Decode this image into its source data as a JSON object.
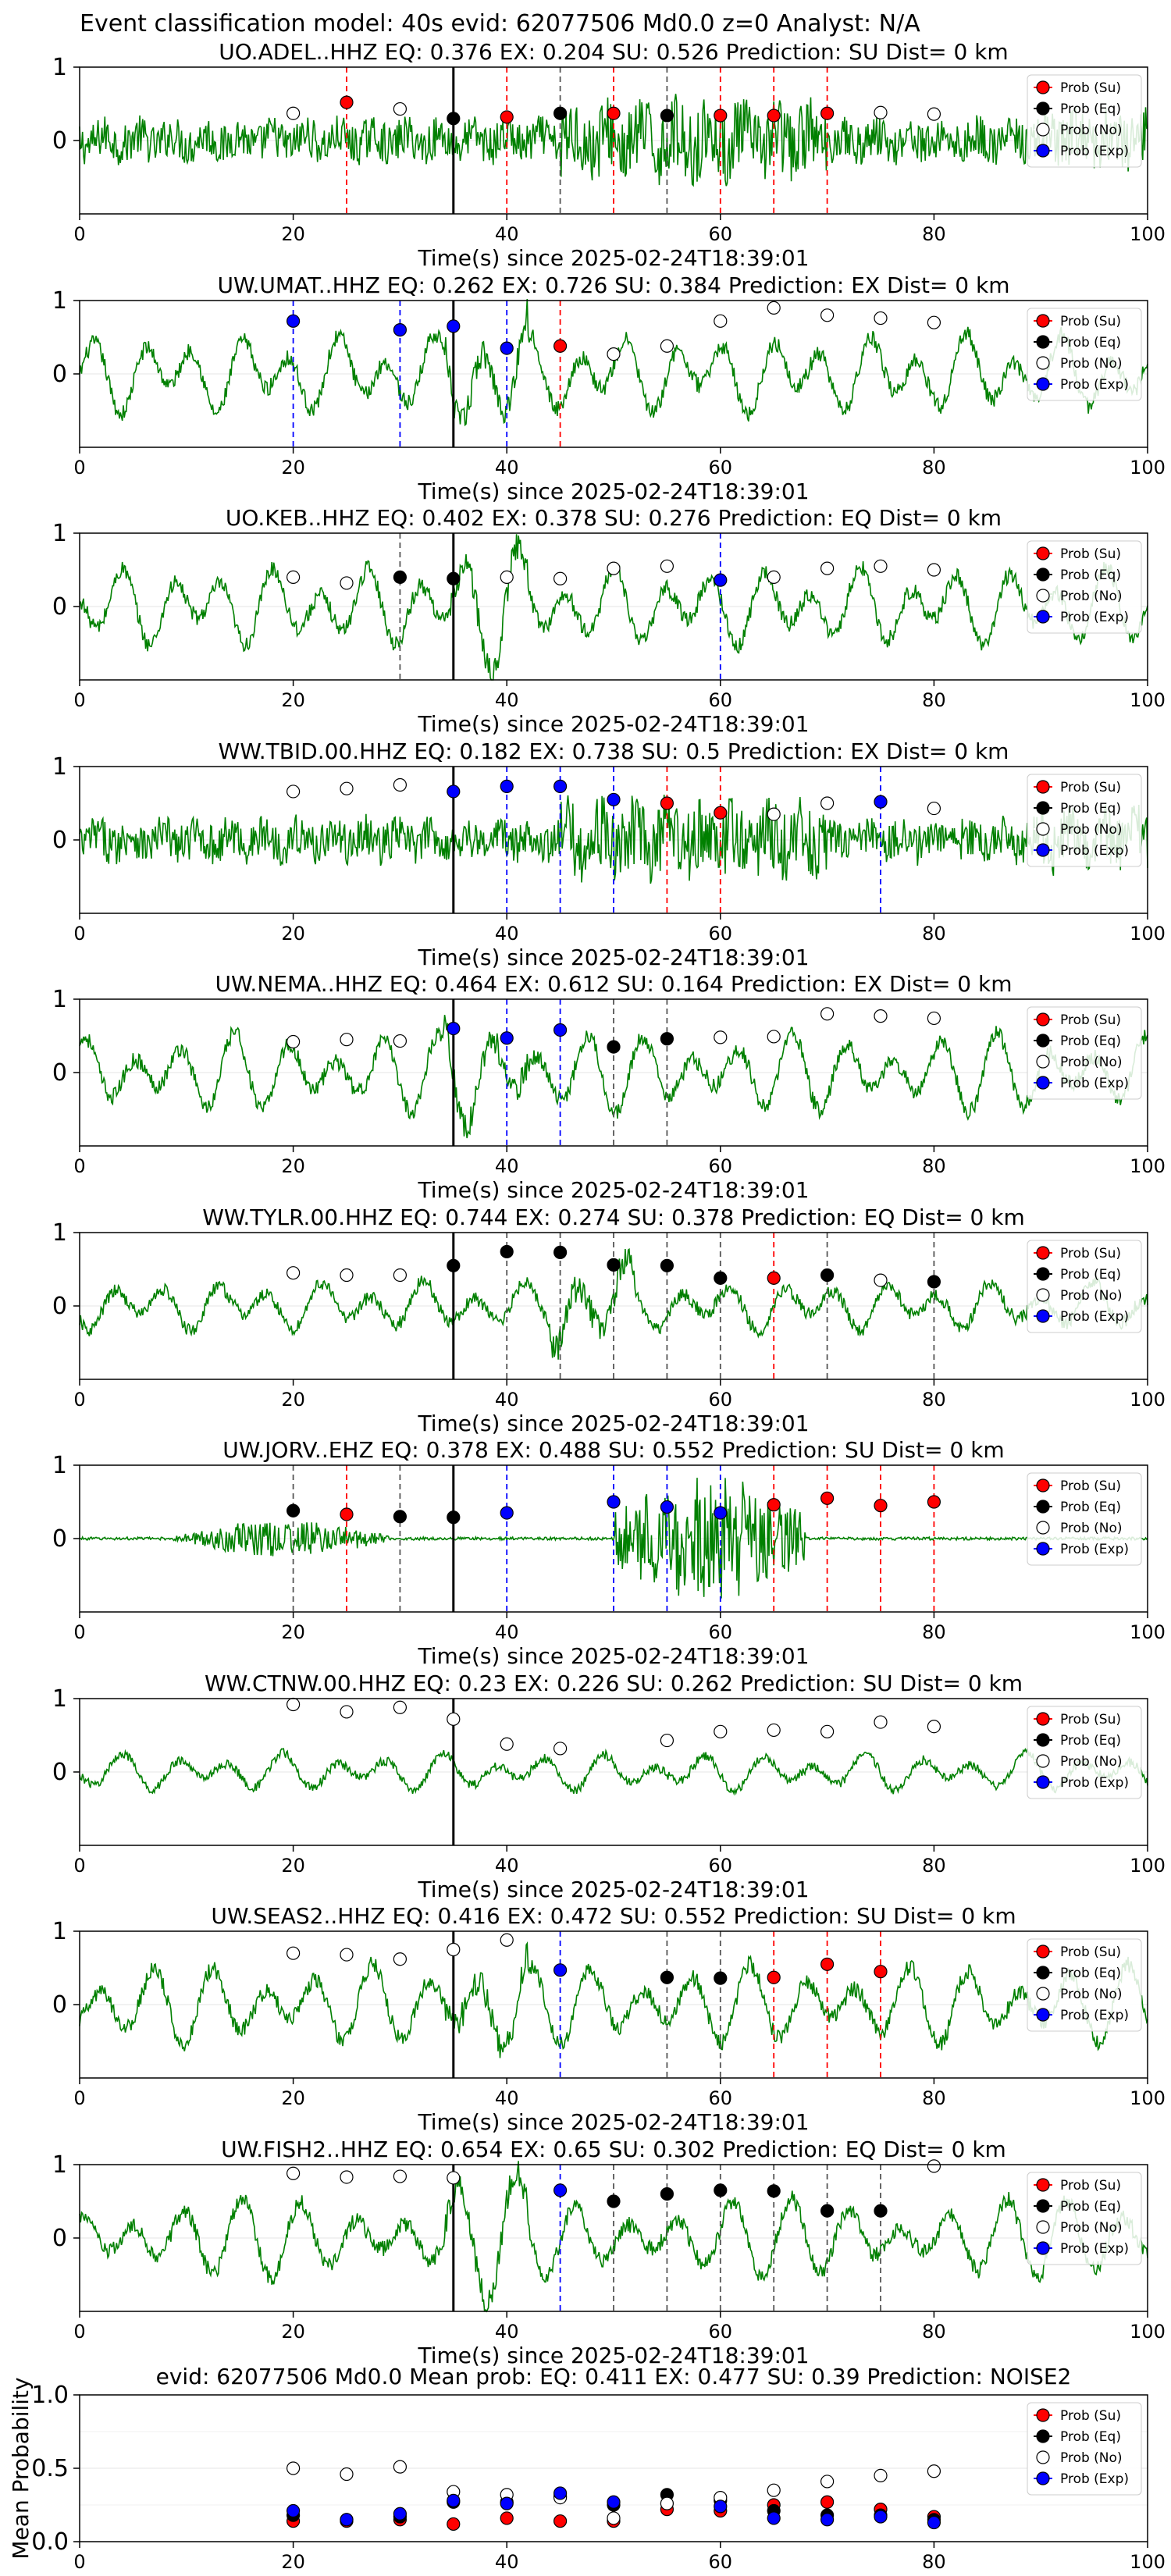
{
  "suptitle": "Event classification model: 40s evid: 62077506 Md0.0 z=0 Analyst: N/A",
  "colors": {
    "trace": "#008000",
    "su": "#ff0000",
    "eq": "#000000",
    "no": "#ffffff",
    "exp": "#0000ff",
    "pick": "#000000"
  },
  "legend": [
    "Prob (Su)",
    "Prob (Eq)",
    "Prob (No)",
    "Prob (Exp)"
  ],
  "chart_data": [
    {
      "type": "scatter",
      "station": "UO.ADEL..HHZ",
      "title": "UO.ADEL..HHZ   EQ: 0.376  EX: 0.204  SU: 0.526   Prediction: SU    Dist= 0 km",
      "xlabel": "Time(s) since 2025-02-24T18:39:01",
      "xlim": [
        0,
        100
      ],
      "ylim": [
        -1,
        1
      ],
      "xticks": [
        "0",
        "20",
        "40",
        "60",
        "80",
        "100"
      ],
      "yticks": [
        "0",
        "1"
      ],
      "pick_time": 35,
      "trace_style": "noisy",
      "points": [
        {
          "t": 20,
          "p": 0.37,
          "cls": "no"
        },
        {
          "t": 25,
          "p": 0.52,
          "cls": "su"
        },
        {
          "t": 30,
          "p": 0.43,
          "cls": "no"
        },
        {
          "t": 35,
          "p": 0.3,
          "cls": "eq"
        },
        {
          "t": 40,
          "p": 0.32,
          "cls": "su"
        },
        {
          "t": 45,
          "p": 0.37,
          "cls": "eq"
        },
        {
          "t": 50,
          "p": 0.37,
          "cls": "su"
        },
        {
          "t": 55,
          "p": 0.34,
          "cls": "eq"
        },
        {
          "t": 60,
          "p": 0.34,
          "cls": "su"
        },
        {
          "t": 65,
          "p": 0.34,
          "cls": "su"
        },
        {
          "t": 70,
          "p": 0.37,
          "cls": "su"
        },
        {
          "t": 75,
          "p": 0.38,
          "cls": "no"
        },
        {
          "t": 80,
          "p": 0.36,
          "cls": "no"
        }
      ]
    },
    {
      "type": "scatter",
      "station": "UW.UMAT..HHZ",
      "title": "UW.UMAT..HHZ   EQ: 0.262  EX: 0.726  SU: 0.384   Prediction: EX    Dist= 0 km",
      "xlabel": "Time(s) since 2025-02-24T18:39:01",
      "xlim": [
        0,
        100
      ],
      "ylim": [
        -1,
        1
      ],
      "xticks": [
        "0",
        "20",
        "40",
        "60",
        "80",
        "100"
      ],
      "yticks": [
        "0",
        "1"
      ],
      "pick_time": 35,
      "trace_style": "wavy",
      "points": [
        {
          "t": 20,
          "p": 0.72,
          "cls": "exp"
        },
        {
          "t": 25,
          "p": null,
          "cls": null
        },
        {
          "t": 30,
          "p": 0.6,
          "cls": "exp"
        },
        {
          "t": 35,
          "p": 0.65,
          "cls": "exp"
        },
        {
          "t": 40,
          "p": 0.35,
          "cls": "exp"
        },
        {
          "t": 45,
          "p": 0.38,
          "cls": "su"
        },
        {
          "t": 50,
          "p": 0.27,
          "cls": "no"
        },
        {
          "t": 55,
          "p": 0.38,
          "cls": "no"
        },
        {
          "t": 60,
          "p": 0.72,
          "cls": "no"
        },
        {
          "t": 65,
          "p": 0.9,
          "cls": "no"
        },
        {
          "t": 70,
          "p": 0.8,
          "cls": "no"
        },
        {
          "t": 75,
          "p": 0.76,
          "cls": "no"
        },
        {
          "t": 80,
          "p": 0.7,
          "cls": "no"
        }
      ]
    },
    {
      "type": "scatter",
      "station": "UO.KEB..HHZ",
      "title": "UO.KEB..HHZ   EQ: 0.402  EX: 0.378  SU: 0.276   Prediction: EQ    Dist= 0 km",
      "xlabel": "Time(s) since 2025-02-24T18:39:01",
      "xlim": [
        0,
        100
      ],
      "ylim": [
        -1,
        1
      ],
      "xticks": [
        "0",
        "20",
        "40",
        "60",
        "80",
        "100"
      ],
      "yticks": [
        "0",
        "1"
      ],
      "pick_time": 35,
      "trace_style": "wavy",
      "points": [
        {
          "t": 20,
          "p": 0.4,
          "cls": "no"
        },
        {
          "t": 25,
          "p": 0.32,
          "cls": "no"
        },
        {
          "t": 30,
          "p": 0.4,
          "cls": "eq"
        },
        {
          "t": 35,
          "p": 0.38,
          "cls": "eq"
        },
        {
          "t": 40,
          "p": 0.4,
          "cls": "no"
        },
        {
          "t": 45,
          "p": 0.38,
          "cls": "no"
        },
        {
          "t": 50,
          "p": 0.52,
          "cls": "no"
        },
        {
          "t": 55,
          "p": 0.55,
          "cls": "no"
        },
        {
          "t": 60,
          "p": 0.36,
          "cls": "exp"
        },
        {
          "t": 65,
          "p": 0.4,
          "cls": "no"
        },
        {
          "t": 70,
          "p": 0.52,
          "cls": "no"
        },
        {
          "t": 75,
          "p": 0.55,
          "cls": "no"
        },
        {
          "t": 80,
          "p": 0.5,
          "cls": "no"
        }
      ]
    },
    {
      "type": "scatter",
      "station": "WW.TBID.00.HHZ",
      "title": "WW.TBID.00.HHZ   EQ: 0.182  EX: 0.738  SU: 0.5   Prediction: EX    Dist= 0 km",
      "xlabel": "Time(s) since 2025-02-24T18:39:01",
      "xlim": [
        0,
        100
      ],
      "ylim": [
        -1,
        1
      ],
      "xticks": [
        "0",
        "20",
        "40",
        "60",
        "80",
        "100"
      ],
      "yticks": [
        "0",
        "1"
      ],
      "pick_time": 35,
      "trace_style": "noisy",
      "points": [
        {
          "t": 20,
          "p": 0.66,
          "cls": "no"
        },
        {
          "t": 25,
          "p": 0.7,
          "cls": "no"
        },
        {
          "t": 30,
          "p": 0.75,
          "cls": "no"
        },
        {
          "t": 35,
          "p": 0.66,
          "cls": "exp"
        },
        {
          "t": 40,
          "p": 0.73,
          "cls": "exp"
        },
        {
          "t": 45,
          "p": 0.73,
          "cls": "exp"
        },
        {
          "t": 50,
          "p": 0.55,
          "cls": "exp"
        },
        {
          "t": 55,
          "p": 0.5,
          "cls": "su"
        },
        {
          "t": 60,
          "p": 0.37,
          "cls": "su"
        },
        {
          "t": 65,
          "p": 0.35,
          "cls": "no"
        },
        {
          "t": 70,
          "p": 0.5,
          "cls": "no"
        },
        {
          "t": 75,
          "p": 0.52,
          "cls": "exp"
        },
        {
          "t": 80,
          "p": 0.43,
          "cls": "no"
        }
      ]
    },
    {
      "type": "scatter",
      "station": "UW.NEMA..HHZ",
      "title": "UW.NEMA..HHZ   EQ: 0.464  EX: 0.612  SU: 0.164   Prediction: EX    Dist= 0 km",
      "xlabel": "Time(s) since 2025-02-24T18:39:01",
      "xlim": [
        0,
        100
      ],
      "ylim": [
        -1,
        1
      ],
      "xticks": [
        "0",
        "20",
        "40",
        "60",
        "80",
        "100"
      ],
      "yticks": [
        "0",
        "1"
      ],
      "pick_time": 35,
      "trace_style": "wavy",
      "points": [
        {
          "t": 20,
          "p": 0.42,
          "cls": "no"
        },
        {
          "t": 25,
          "p": 0.45,
          "cls": "no"
        },
        {
          "t": 30,
          "p": 0.43,
          "cls": "no"
        },
        {
          "t": 35,
          "p": 0.6,
          "cls": "exp"
        },
        {
          "t": 40,
          "p": 0.47,
          "cls": "exp"
        },
        {
          "t": 45,
          "p": 0.58,
          "cls": "exp"
        },
        {
          "t": 50,
          "p": 0.35,
          "cls": "eq"
        },
        {
          "t": 55,
          "p": 0.46,
          "cls": "eq"
        },
        {
          "t": 60,
          "p": 0.48,
          "cls": "no"
        },
        {
          "t": 65,
          "p": 0.49,
          "cls": "no"
        },
        {
          "t": 70,
          "p": 0.8,
          "cls": "no"
        },
        {
          "t": 75,
          "p": 0.77,
          "cls": "no"
        },
        {
          "t": 80,
          "p": 0.74,
          "cls": "no"
        }
      ]
    },
    {
      "type": "scatter",
      "station": "WW.TYLR.00.HHZ",
      "title": "WW.TYLR.00.HHZ   EQ: 0.744  EX: 0.274  SU: 0.378   Prediction: EQ    Dist= 0 km",
      "xlabel": "Time(s) since 2025-02-24T18:39:01",
      "xlim": [
        0,
        100
      ],
      "ylim": [
        -1,
        1
      ],
      "xticks": [
        "0",
        "20",
        "40",
        "60",
        "80",
        "100"
      ],
      "yticks": [
        "0",
        "1"
      ],
      "pick_time": 35,
      "trace_style": "medium",
      "points": [
        {
          "t": 20,
          "p": 0.45,
          "cls": "no"
        },
        {
          "t": 25,
          "p": 0.42,
          "cls": "no"
        },
        {
          "t": 30,
          "p": 0.42,
          "cls": "no"
        },
        {
          "t": 35,
          "p": 0.55,
          "cls": "eq"
        },
        {
          "t": 40,
          "p": 0.74,
          "cls": "eq"
        },
        {
          "t": 45,
          "p": 0.73,
          "cls": "eq"
        },
        {
          "t": 50,
          "p": 0.56,
          "cls": "eq"
        },
        {
          "t": 55,
          "p": 0.55,
          "cls": "eq"
        },
        {
          "t": 60,
          "p": 0.38,
          "cls": "eq"
        },
        {
          "t": 65,
          "p": 0.38,
          "cls": "su"
        },
        {
          "t": 70,
          "p": 0.42,
          "cls": "eq"
        },
        {
          "t": 75,
          "p": 0.35,
          "cls": "no"
        },
        {
          "t": 80,
          "p": 0.33,
          "cls": "eq"
        }
      ]
    },
    {
      "type": "scatter",
      "station": "UW.JORV..EHZ",
      "title": "UW.JORV..EHZ   EQ: 0.378  EX: 0.488  SU: 0.552   Prediction: SU    Dist= 0 km",
      "xlabel": "Time(s) since 2025-02-24T18:39:01",
      "xlim": [
        0,
        100
      ],
      "ylim": [
        -1,
        1
      ],
      "xticks": [
        "0",
        "20",
        "40",
        "60",
        "80",
        "100"
      ],
      "yticks": [
        "0",
        "1"
      ],
      "pick_time": 35,
      "trace_style": "burst",
      "points": [
        {
          "t": 20,
          "p": 0.38,
          "cls": "eq"
        },
        {
          "t": 25,
          "p": 0.33,
          "cls": "su"
        },
        {
          "t": 30,
          "p": 0.3,
          "cls": "eq"
        },
        {
          "t": 35,
          "p": 0.29,
          "cls": "eq"
        },
        {
          "t": 40,
          "p": 0.35,
          "cls": "exp"
        },
        {
          "t": 45,
          "p": null,
          "cls": null
        },
        {
          "t": 50,
          "p": 0.5,
          "cls": "exp"
        },
        {
          "t": 55,
          "p": 0.43,
          "cls": "exp"
        },
        {
          "t": 60,
          "p": 0.35,
          "cls": "exp"
        },
        {
          "t": 65,
          "p": 0.46,
          "cls": "su"
        },
        {
          "t": 70,
          "p": 0.55,
          "cls": "su"
        },
        {
          "t": 75,
          "p": 0.45,
          "cls": "su"
        },
        {
          "t": 80,
          "p": 0.5,
          "cls": "su"
        }
      ]
    },
    {
      "type": "scatter",
      "station": "WW.CTNW.00.HHZ",
      "title": "WW.CTNW.00.HHZ   EQ: 0.23  EX: 0.226  SU: 0.262   Prediction: SU    Dist= 0 km",
      "xlabel": "Time(s) since 2025-02-24T18:39:01",
      "xlim": [
        0,
        100
      ],
      "ylim": [
        -1,
        1
      ],
      "xticks": [
        "0",
        "20",
        "40",
        "60",
        "80",
        "100"
      ],
      "yticks": [
        "0",
        "1"
      ],
      "pick_time": 35,
      "trace_style": "quiet",
      "points": [
        {
          "t": 20,
          "p": 0.92,
          "cls": "no"
        },
        {
          "t": 25,
          "p": 0.82,
          "cls": "no"
        },
        {
          "t": 30,
          "p": 0.88,
          "cls": "no"
        },
        {
          "t": 35,
          "p": 0.72,
          "cls": "no"
        },
        {
          "t": 40,
          "p": 0.38,
          "cls": "no"
        },
        {
          "t": 45,
          "p": 0.32,
          "cls": "no"
        },
        {
          "t": 50,
          "p": null,
          "cls": null
        },
        {
          "t": 55,
          "p": 0.43,
          "cls": "no"
        },
        {
          "t": 60,
          "p": 0.55,
          "cls": "no"
        },
        {
          "t": 65,
          "p": 0.57,
          "cls": "no"
        },
        {
          "t": 70,
          "p": 0.55,
          "cls": "no"
        },
        {
          "t": 75,
          "p": 0.68,
          "cls": "no"
        },
        {
          "t": 80,
          "p": 0.62,
          "cls": "no"
        }
      ]
    },
    {
      "type": "scatter",
      "station": "UW.SEAS2..HHZ",
      "title": "UW.SEAS2..HHZ   EQ: 0.416  EX: 0.472  SU: 0.552   Prediction: SU    Dist= 0 km",
      "xlabel": "Time(s) since 2025-02-24T18:39:01",
      "xlim": [
        0,
        100
      ],
      "ylim": [
        -1,
        1
      ],
      "xticks": [
        "0",
        "20",
        "40",
        "60",
        "80",
        "100"
      ],
      "yticks": [
        "0",
        "1"
      ],
      "pick_time": 35,
      "trace_style": "wavy",
      "points": [
        {
          "t": 20,
          "p": 0.7,
          "cls": "no"
        },
        {
          "t": 25,
          "p": 0.68,
          "cls": "no"
        },
        {
          "t": 30,
          "p": 0.62,
          "cls": "no"
        },
        {
          "t": 35,
          "p": 0.75,
          "cls": "no"
        },
        {
          "t": 40,
          "p": 0.88,
          "cls": "no"
        },
        {
          "t": 45,
          "p": 0.47,
          "cls": "exp"
        },
        {
          "t": 50,
          "p": null,
          "cls": null
        },
        {
          "t": 55,
          "p": 0.37,
          "cls": "eq"
        },
        {
          "t": 60,
          "p": 0.36,
          "cls": "eq"
        },
        {
          "t": 65,
          "p": 0.37,
          "cls": "su"
        },
        {
          "t": 70,
          "p": 0.55,
          "cls": "su"
        },
        {
          "t": 75,
          "p": 0.45,
          "cls": "su"
        },
        {
          "t": 80,
          "p": null,
          "cls": null
        }
      ]
    },
    {
      "type": "scatter",
      "station": "UW.FISH2..HHZ",
      "title": "UW.FISH2..HHZ   EQ: 0.654  EX: 0.65  SU: 0.302   Prediction: EQ    Dist= 0 km",
      "xlabel": "Time(s) since 2025-02-24T18:39:01",
      "xlim": [
        0,
        100
      ],
      "ylim": [
        -1,
        1
      ],
      "xticks": [
        "0",
        "20",
        "40",
        "60",
        "80",
        "100"
      ],
      "yticks": [
        "0",
        "1"
      ],
      "pick_time": 35,
      "trace_style": "wavy",
      "points": [
        {
          "t": 20,
          "p": 0.88,
          "cls": "no"
        },
        {
          "t": 25,
          "p": 0.83,
          "cls": "no"
        },
        {
          "t": 30,
          "p": 0.84,
          "cls": "no"
        },
        {
          "t": 35,
          "p": 0.82,
          "cls": "no"
        },
        {
          "t": 40,
          "p": null,
          "cls": null
        },
        {
          "t": 45,
          "p": 0.65,
          "cls": "exp"
        },
        {
          "t": 50,
          "p": 0.5,
          "cls": "eq"
        },
        {
          "t": 55,
          "p": 0.6,
          "cls": "eq"
        },
        {
          "t": 60,
          "p": 0.65,
          "cls": "eq"
        },
        {
          "t": 65,
          "p": 0.64,
          "cls": "eq"
        },
        {
          "t": 70,
          "p": 0.37,
          "cls": "eq"
        },
        {
          "t": 75,
          "p": 0.37,
          "cls": "eq"
        },
        {
          "t": 80,
          "p": 0.98,
          "cls": "no"
        }
      ]
    },
    {
      "type": "scatter",
      "title": "evid: 62077506  Md0.0   Mean prob:   EQ: 0.411  EX: 0.477  SU: 0.39   Prediction: NOISE2",
      "ylabel": "Mean Probability",
      "xlim": [
        0,
        100
      ],
      "ylim": [
        0,
        1
      ],
      "xticks": [
        "0",
        "20",
        "40",
        "60",
        "80",
        "100"
      ],
      "yticks": [
        "0.0",
        "0.5",
        "1.0"
      ],
      "x": [
        20,
        25,
        30,
        35,
        40,
        45,
        50,
        55,
        60,
        65,
        70,
        75,
        80
      ],
      "series": [
        {
          "name": "Prob (Su)",
          "cls": "su",
          "values": [
            0.14,
            0.14,
            0.15,
            0.12,
            0.16,
            0.14,
            0.14,
            0.22,
            0.21,
            0.25,
            0.27,
            0.22,
            0.17
          ]
        },
        {
          "name": "Prob (Eq)",
          "cls": "eq",
          "values": [
            0.18,
            0.15,
            0.17,
            0.27,
            0.27,
            0.31,
            0.25,
            0.32,
            0.28,
            0.21,
            0.18,
            0.18,
            0.15
          ]
        },
        {
          "name": "Prob (No)",
          "cls": "no",
          "values": [
            0.5,
            0.46,
            0.51,
            0.34,
            0.32,
            0.3,
            0.16,
            0.26,
            0.3,
            0.35,
            0.41,
            0.45,
            0.48
          ]
        },
        {
          "name": "Prob (Exp)",
          "cls": "exp",
          "values": [
            0.21,
            0.15,
            0.19,
            0.28,
            0.26,
            0.33,
            0.27,
            null,
            0.24,
            0.16,
            0.15,
            0.17,
            0.13
          ]
        }
      ]
    }
  ]
}
